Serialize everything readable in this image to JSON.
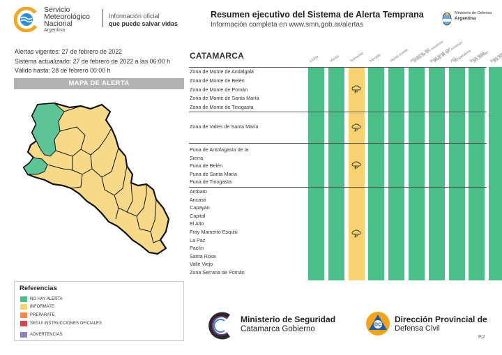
{
  "header": {
    "org_line1": "Servicio",
    "org_line2": "Meteorológico",
    "org_line3": "Nacional",
    "org_country": "Argentina",
    "tagline1": "Información oficial",
    "tagline2": "que puede salvar vidas",
    "title": "Resumen ejecutivo del Sistema de Alerta Temprana",
    "subtitle": "Información completa en www.smn.gob.ar/alertas",
    "ministry_line1": "Ministerio de Defensa",
    "ministry_line2": "Argentina"
  },
  "info": {
    "vigentes": "Alertas vigentes: 27 de febrero de 2022",
    "actualizado": "Sistema actualizado: 27 de febrero de 2022 a las 06:00 h",
    "valido": "Válido hasta: 28 de febrero 00:00 h"
  },
  "map": {
    "title": "MAPA DE ALERTA"
  },
  "colors": {
    "no_alert": "#4cbe8a",
    "informate": "#f7d26e",
    "preparate": "#f08b4b",
    "instrucciones": "#d9434e",
    "advertencias": "#8f7fc0",
    "map_yellow": "#f7d98a",
    "map_green": "#5cc496"
  },
  "legend": {
    "title": "Referencias",
    "items": [
      {
        "label": "NO HAY ALERTA",
        "color": "#4cbe8a"
      },
      {
        "label": "INFORMATE",
        "color": "#f7d26e"
      },
      {
        "label": "PREPARATE",
        "color": "#f08b4b"
      },
      {
        "label": "SEGUI INSTRUCCIONES OFICIALES",
        "color": "#d9434e"
      },
      {
        "label": "ADVERTENCIAS",
        "color": "#8f7fc0"
      }
    ]
  },
  "table": {
    "region": "CATAMARCA",
    "columns": [
      {
        "label": "Lluvia",
        "level": "no_alert"
      },
      {
        "label": "Viento",
        "level": "no_alert"
      },
      {
        "label": "Tormenta",
        "level": "informate",
        "icon": "storm-icon"
      },
      {
        "label": "Nevada",
        "level": "no_alert"
      },
      {
        "label": "Viento zonda",
        "level": "no_alert"
      },
      {
        "label": "Alta temp. por",
        "label2": "arriba de los máximos",
        "level": "no_alert"
      },
      {
        "label": "Baja temp. por",
        "label2": "abajo de los mínimos",
        "level": "no_alert"
      },
      {
        "label": "Alta",
        "label2": "temperatura",
        "level": "no_alert"
      },
      {
        "label": "Baja temp.",
        "label2": "por debajo",
        "level": "no_alert"
      },
      {
        "label": "Baja temp.",
        "label2": "por debajo",
        "level": "no_alert"
      }
    ],
    "groups": [
      {
        "zones": [
          "Zona de Monte de Andalgalá",
          "Zona de Monte de Belén",
          "Zona de Monte de Pomán",
          "Zona de Monte de Santa María",
          "Zona de Monte de Tinogasta"
        ]
      },
      {
        "zones": [
          "Zona de Valles de Santa María"
        ]
      },
      {
        "zones": [
          "Puna de Antofagasta de la",
          "Sierra",
          "Puna de Belén",
          "Puna de Santa María",
          "Puna de Tinogasta"
        ]
      },
      {
        "zones": [
          "Ambato",
          "Ancasti",
          "Capayán",
          "Capital",
          "El Alto",
          "Fray Mamerto Esquiú",
          "La Paz",
          "Paclín",
          "Santa Rosa",
          "Valle Viejo",
          "Zona Serrana de Pomán"
        ]
      }
    ]
  },
  "footer": {
    "min_line1": "Ministerio de Seguridad",
    "min_line2": "Catamarca Gobierno",
    "dir_line1": "Dirección Provincial de",
    "dir_line2": "Defensa Civil",
    "page": "P.2",
    "dc_badge": "DC"
  }
}
